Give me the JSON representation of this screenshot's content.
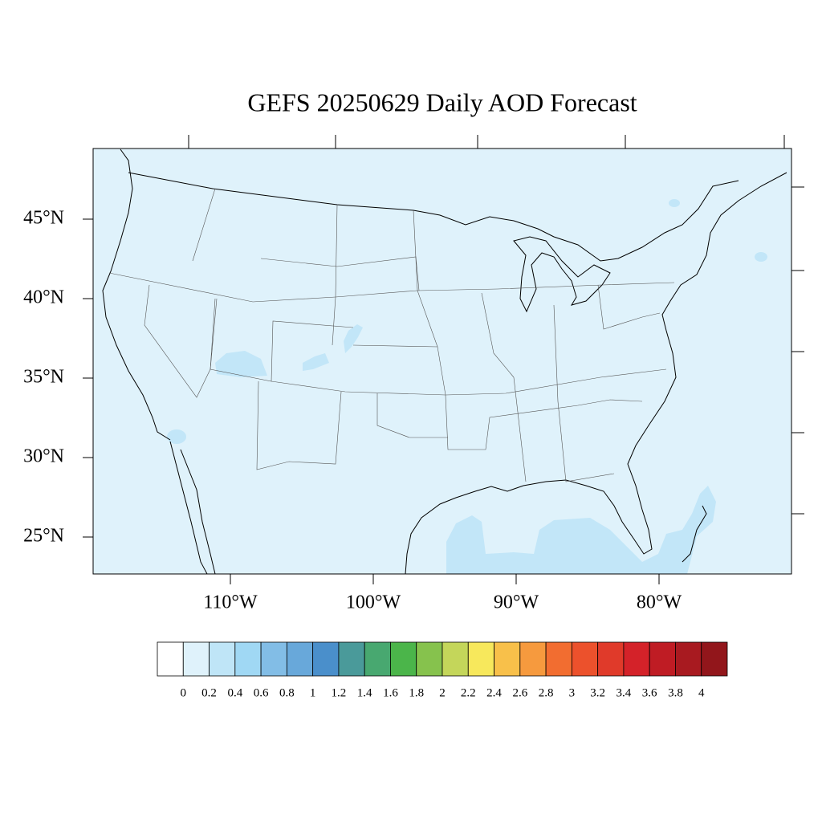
{
  "map": {
    "title": "GEFS 20250629 Daily AOD Forecast",
    "lat_labels": [
      "45°N",
      "40°N",
      "35°N",
      "30°N",
      "25°N"
    ],
    "lon_labels": [
      "110°W",
      "100°W",
      "90°W",
      "80°W"
    ],
    "colorbar": {
      "levels": [
        0,
        0.2,
        0.4,
        0.6,
        0.8,
        1,
        1.2,
        1.4,
        1.6,
        1.8,
        2,
        2.2,
        2.4,
        2.6,
        2.8,
        3,
        3.2,
        3.4,
        3.6,
        3.8,
        4
      ],
      "colors": [
        "#ffffff",
        "#dff2fb",
        "#bfe5f7",
        "#a0d8f4",
        "#82bde6",
        "#68a8da",
        "#4a8fcb",
        "#4a9a9a",
        "#48a870",
        "#4bb54a",
        "#86c24d",
        "#c4d65a",
        "#f7e85c",
        "#f8c04a",
        "#f69a3e",
        "#f26d30",
        "#ec512c",
        "#e03a2a",
        "#d42229",
        "#bf1c24",
        "#a81a20",
        "#92161b"
      ]
    }
  }
}
